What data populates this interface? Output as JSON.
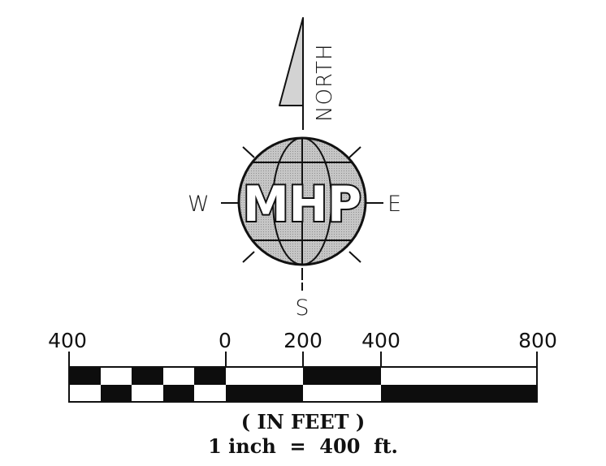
{
  "compass": {
    "north_label": "NORTH",
    "west_label": "W",
    "east_label": "E",
    "south_label": "S",
    "logo_text": "MHP"
  },
  "scale_bar": {
    "tick_labels": [
      "400",
      "0",
      "200",
      "400",
      "800"
    ],
    "units_caption": "( IN FEET )",
    "ratio_caption": "1 inch  =  400  ft."
  },
  "colors": {
    "ink": "#111111",
    "globe_fill": "#bdbdbd",
    "arrow_fill": "#d4d4d4",
    "bar_dark": "#0d0d0d",
    "bar_light": "#ffffff"
  }
}
